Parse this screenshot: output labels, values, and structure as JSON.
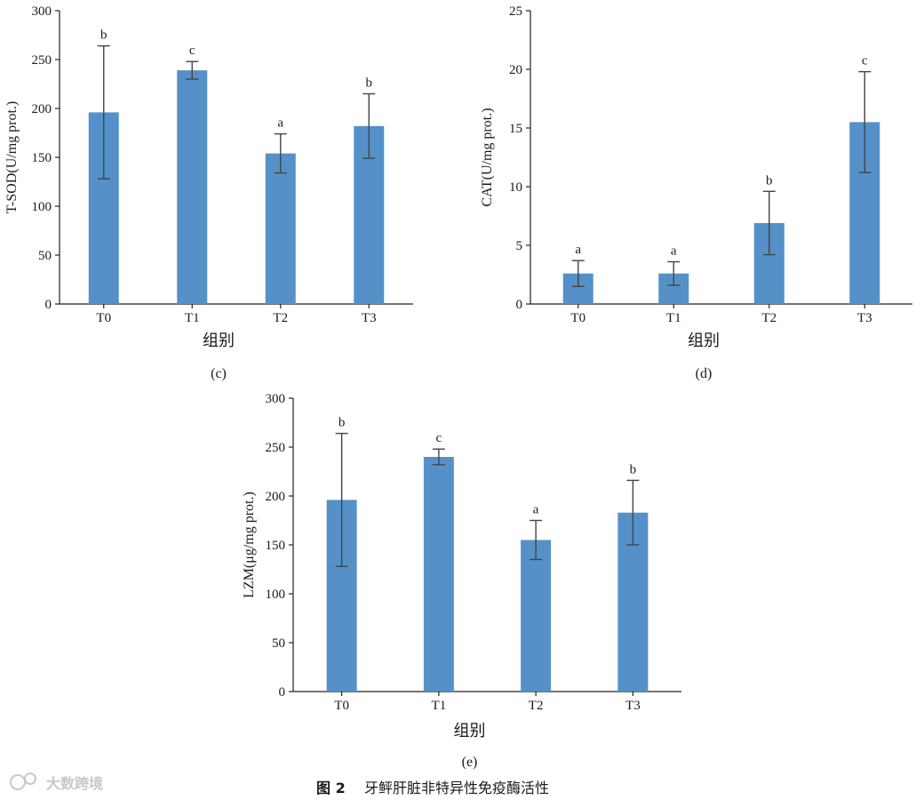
{
  "chart_data": [
    {
      "type": "bar",
      "panel_label": "(c)",
      "categories": [
        "T0",
        "T1",
        "T2",
        "T3"
      ],
      "values": [
        196,
        239,
        154,
        182
      ],
      "error": [
        68,
        9,
        20,
        33
      ],
      "significance": [
        "b",
        "c",
        "a",
        "b"
      ],
      "xlabel": "组别",
      "ylabel": "T-SOD(U/mg prot.)",
      "ylim": [
        0,
        300
      ],
      "yticks": [
        0,
        50,
        100,
        150,
        200,
        250,
        300
      ],
      "bar_color": "#5591c8"
    },
    {
      "type": "bar",
      "panel_label": "(d)",
      "categories": [
        "T0",
        "T1",
        "T2",
        "T3"
      ],
      "values": [
        2.6,
        2.6,
        6.9,
        15.5
      ],
      "error": [
        1.1,
        1.0,
        2.7,
        4.3
      ],
      "significance": [
        "a",
        "a",
        "b",
        "c"
      ],
      "xlabel": "组别",
      "ylabel": "CAT(U/mg prot.)",
      "ylim": [
        0,
        25
      ],
      "yticks": [
        0,
        5,
        10,
        15,
        20,
        25
      ],
      "bar_color": "#5591c8"
    },
    {
      "type": "bar",
      "panel_label": "(e)",
      "categories": [
        "T0",
        "T1",
        "T2",
        "T3"
      ],
      "values": [
        196,
        240,
        155,
        183
      ],
      "error": [
        68,
        8,
        20,
        33
      ],
      "significance": [
        "b",
        "c",
        "a",
        "b"
      ],
      "xlabel": "组别",
      "ylabel": "LZM(μg/mg prot.)",
      "ylim": [
        0,
        300
      ],
      "yticks": [
        0,
        50,
        100,
        150,
        200,
        250,
        300
      ],
      "bar_color": "#5591c8"
    }
  ],
  "caption": {
    "number": "图 2",
    "text": "牙鲆肝脏非特异性免疫酶活性"
  },
  "watermark": "大数跨境"
}
